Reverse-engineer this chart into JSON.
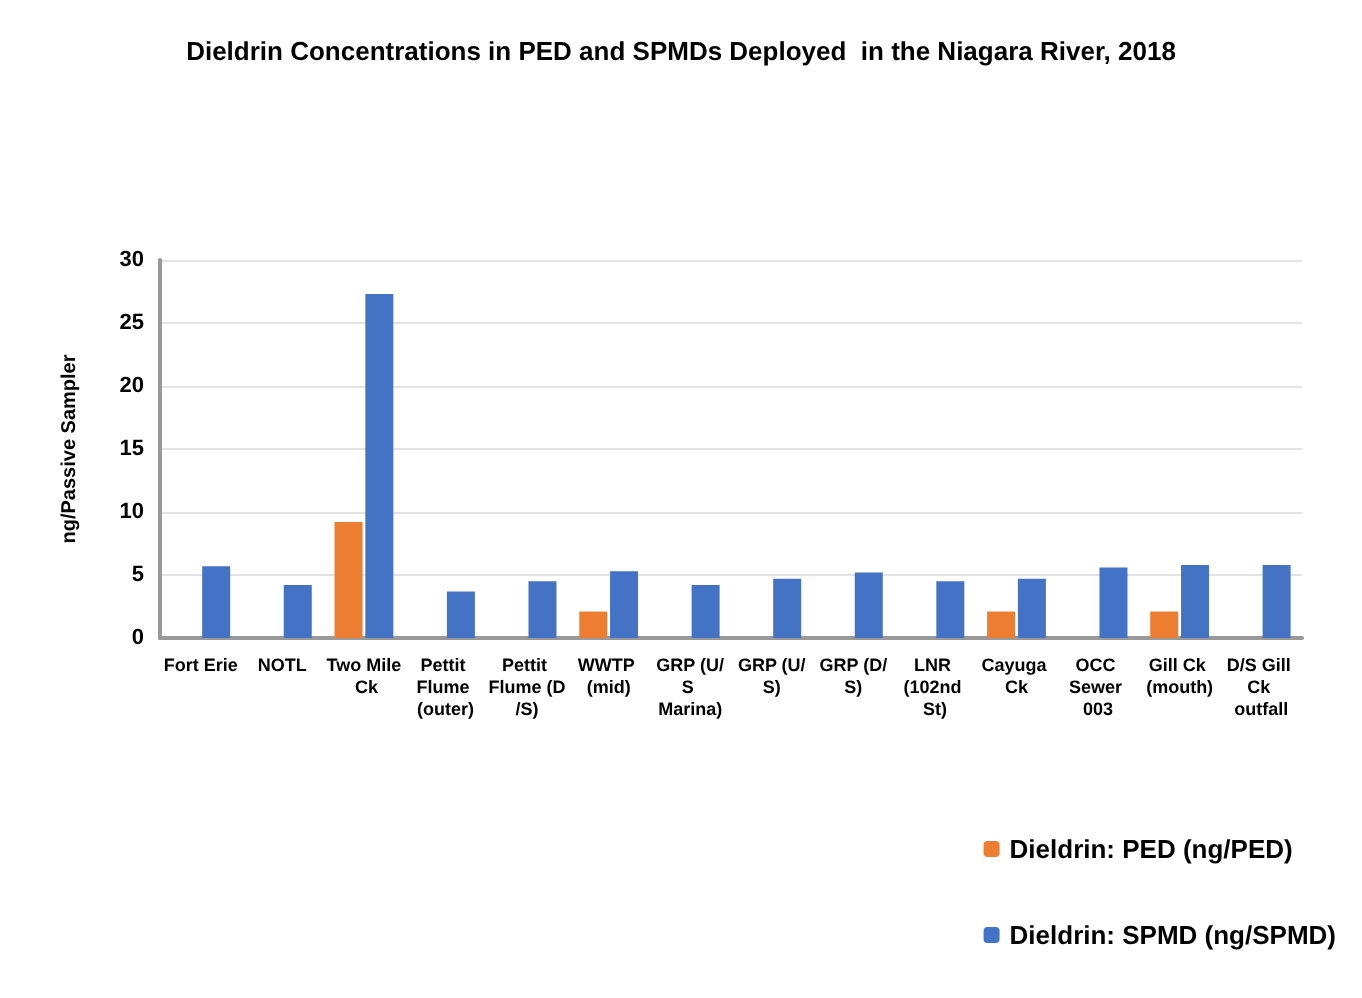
{
  "chart_data": {
    "type": "bar",
    "title": "Dieldrin Concentrations in PED and SPMDs Deployed  in the Niagara River, 2018",
    "ylabel": "ng/Passive Sampler",
    "categories": [
      "Fort Erie",
      "NOTL",
      "Two Mile Ck",
      "Pettit Flume (outer)",
      "Pettit Flume (D/S)",
      "WWTP (mid)",
      "GRP (U/S Marina)",
      "GRP (U/S)",
      "GRP (D/S)",
      "LNR (102nd St)",
      "Cayuga Ck",
      "OCC Sewer 003",
      "Gill Ck (mouth)",
      "D/S Gill Ck outfall"
    ],
    "series": [
      {
        "name": "Dieldrin: PED (ng/PED)",
        "color": "#ed7d31",
        "values": [
          null,
          null,
          9.2,
          null,
          null,
          2.1,
          null,
          null,
          null,
          null,
          2.1,
          null,
          2.1,
          null
        ]
      },
      {
        "name": "Dieldrin: SPMD (ng/SPMD)",
        "color": "#4472c4",
        "values": [
          5.7,
          4.2,
          27.3,
          3.7,
          4.5,
          5.3,
          4.2,
          4.7,
          5.2,
          4.5,
          4.7,
          5.6,
          5.8,
          5.8
        ]
      }
    ],
    "ylim": [
      0,
      30
    ],
    "yticks": [
      0,
      5,
      10,
      15,
      20,
      25,
      30
    ],
    "grid": "y",
    "legend": "bottom right"
  }
}
